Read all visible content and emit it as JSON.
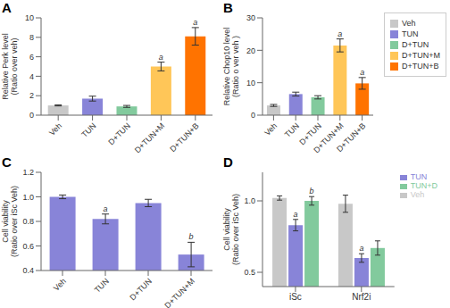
{
  "chart_data": [
    {
      "type": "bar",
      "title": "A",
      "categories": [
        "Veh",
        "TUN",
        "D+TUN",
        "D+TUN+M",
        "D+TUN+B"
      ],
      "values": [
        1.0,
        1.7,
        0.9,
        5.0,
        8.1
      ],
      "errors": [
        0.05,
        0.25,
        0.1,
        0.45,
        0.9
      ],
      "colors": [
        "#c8c8c8",
        "#8884d8",
        "#82ca9d",
        "#ffc658",
        "#ff7300"
      ],
      "ylabel": "Relative Perk level\n(Ratio over veh)",
      "ylim": [
        0,
        10
      ],
      "yticks": [
        0,
        2,
        4,
        6,
        8,
        10
      ],
      "annotations": [
        {
          "category": "D+TUN+M",
          "text": "a"
        },
        {
          "category": "D+TUN+B",
          "text": "a"
        }
      ]
    },
    {
      "type": "bar",
      "title": "B",
      "categories": [
        "Veh",
        "TUN",
        "D+TUN",
        "D+TUN+M",
        "D+TUN+B"
      ],
      "values": [
        3.0,
        6.5,
        5.5,
        21.5,
        9.8
      ],
      "errors": [
        0.3,
        0.6,
        0.5,
        2.0,
        1.8
      ],
      "colors": [
        "#c8c8c8",
        "#8884d8",
        "#82ca9d",
        "#ffc658",
        "#ff7300"
      ],
      "ylabel": "Relative Chop10 level\n(Ratio o ver veh )",
      "ylim": [
        0,
        30
      ],
      "yticks": [
        0,
        10,
        20,
        30
      ],
      "annotations": [
        {
          "category": "D+TUN+M",
          "text": "a"
        },
        {
          "category": "D+TUN+B",
          "text": "a"
        }
      ],
      "legend": "right"
    },
    {
      "type": "bar",
      "title": "C",
      "categories": [
        "Veh",
        "TUN",
        "D+TUN",
        "D+TUN+M"
      ],
      "values": [
        1.0,
        0.82,
        0.95,
        0.53
      ],
      "errors": [
        0.015,
        0.04,
        0.03,
        0.1
      ],
      "color": "#8884d8",
      "ylabel": "Cell viability\n(Ratio over iSc Veh)",
      "ylim": [
        0.4,
        1.2
      ],
      "yticks": [
        0.4,
        0.6,
        0.8,
        {
          "value": 1.0,
          "label": "1.0"
        },
        1.2
      ],
      "annotations": [
        {
          "category": "TUN",
          "text": "a"
        },
        {
          "category": "D+TUN+M",
          "text": "b"
        }
      ]
    },
    {
      "type": "bar",
      "title": "D",
      "categories": [
        "iSc",
        "Nrf2i"
      ],
      "series": [
        {
          "name": "Veh",
          "color": "#c8c8c8",
          "values": [
            1.02,
            0.98
          ],
          "errors": [
            0.015,
            0.06
          ]
        },
        {
          "name": "TUN",
          "color": "#8884d8",
          "values": [
            0.83,
            0.6
          ],
          "errors": [
            0.04,
            0.03
          ]
        },
        {
          "name": "TUN+D",
          "color": "#82ca9d",
          "values": [
            1.0,
            0.67
          ],
          "errors": [
            0.03,
            0.05
          ]
        }
      ],
      "ylabel": "Cell viability\n(Ratio over iSc Veh)",
      "ylim": [
        0.4,
        1.2
      ],
      "yticks": [
        0.5,
        {
          "value": 1.0,
          "label": "1.0"
        }
      ],
      "annotations": [
        {
          "category": "iSc",
          "series": "TUN",
          "text": "a"
        },
        {
          "category": "iSc",
          "series": "TUN+D",
          "text": "b"
        },
        {
          "category": "Nrf2i",
          "series": "TUN",
          "text": "a"
        }
      ],
      "legend": "right"
    }
  ]
}
